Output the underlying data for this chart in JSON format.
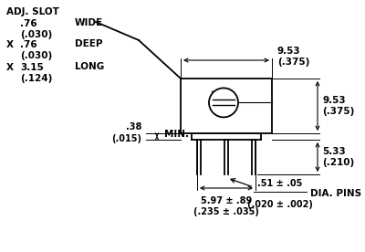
{
  "bg_color": "#ffffff",
  "line_color": "#000000",
  "fig_width": 4.0,
  "fig_height": 2.76,
  "dpi": 100,
  "texts": {
    "adj_slot": "ADJ. SLOT",
    "wide_dim": ".76\n(.030)",
    "wide_label": "WIDE",
    "deep_x": "X",
    "deep_dim": ".76\n(.030)",
    "deep_label": "DEEP",
    "long_x": "X",
    "long_dim": "3.15\n(.124)",
    "long_label": "LONG",
    "min_dim": ".38\n(.015)",
    "min_label": "MIN.",
    "top_horiz_dim": "9.53\n(.375)",
    "right_vert_top_dim": "9.53\n(.375)",
    "right_vert_bot_dim": "5.33\n(.210)",
    "bot_left_dim": "5.97 ± .89\n(.235 ± .035)",
    "bot_right_dim": ".51 ± .05\n(.020 ± .002)",
    "dia_pins": "DIA. PINS"
  }
}
